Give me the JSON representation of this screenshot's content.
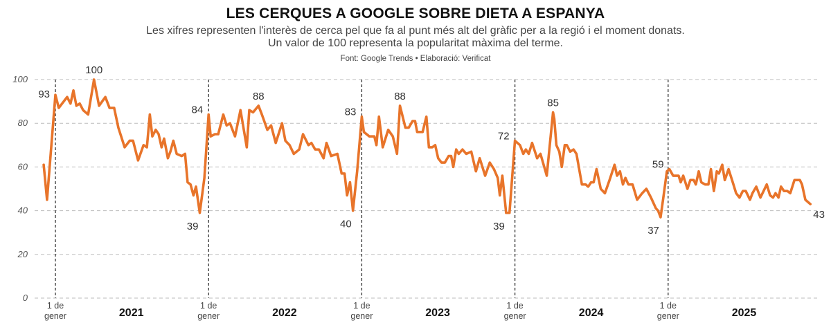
{
  "header": {
    "title": "LES CERQUES A GOOGLE SOBRE DIETA A ESPANYA",
    "subtitle_line1": "Les xifres representen l'interès de cerca pel que fa al punt més alt del gràfic per a la regió i el moment donats.",
    "subtitle_line2": "Un valor de 100 representa la popularitat màxima del terme.",
    "source": "Font: Google Trends • Elaboració: Verificat"
  },
  "chart_data": {
    "type": "line",
    "title": "LES CERQUES A GOOGLE SOBRE DIETA A ESPANYA",
    "xlabel": "",
    "ylabel": "",
    "ylim": [
      0,
      100
    ],
    "yticks": [
      "0",
      "20",
      "40",
      "60",
      "80",
      "100"
    ],
    "grid": "horizontal dashed",
    "line_color": "#E8742A",
    "year_markers": [
      {
        "date": "2021-01-01",
        "label": "1 de gener"
      },
      {
        "date": "2022-01-01",
        "label": "1 de gener"
      },
      {
        "date": "2023-01-01",
        "label": "1 de gener"
      },
      {
        "date": "2024-01-01",
        "label": "1 de gener"
      },
      {
        "date": "2025-01-01",
        "label": "1 de gener"
      }
    ],
    "year_labels": [
      {
        "label": "2021",
        "date": "2021-07-01"
      },
      {
        "label": "2022",
        "date": "2022-07-01"
      },
      {
        "label": "2023",
        "date": "2023-07-01"
      },
      {
        "label": "2024",
        "date": "2024-07-01"
      },
      {
        "label": "2025",
        "date": "2025-07-01"
      }
    ],
    "series": [
      {
        "points": [
          [
            "2020-12-04",
            61
          ],
          [
            "2020-12-12",
            45
          ],
          [
            "2021-01-01",
            93
          ],
          [
            "2021-01-09",
            87
          ],
          [
            "2021-01-29",
            92
          ],
          [
            "2021-02-06",
            89
          ],
          [
            "2021-02-13",
            95
          ],
          [
            "2021-02-20",
            88
          ],
          [
            "2021-02-28",
            89
          ],
          [
            "2021-03-08",
            86
          ],
          [
            "2021-03-20",
            84
          ],
          [
            "2021-04-03",
            100
          ],
          [
            "2021-04-15",
            88
          ],
          [
            "2021-04-30",
            92
          ],
          [
            "2021-05-10",
            87
          ],
          [
            "2021-05-21",
            87
          ],
          [
            "2021-05-31",
            78
          ],
          [
            "2021-06-15",
            69
          ],
          [
            "2021-06-27",
            72
          ],
          [
            "2021-07-05",
            72
          ],
          [
            "2021-07-17",
            63
          ],
          [
            "2021-07-30",
            70
          ],
          [
            "2021-08-07",
            69
          ],
          [
            "2021-08-14",
            84
          ],
          [
            "2021-08-20",
            74
          ],
          [
            "2021-08-28",
            77
          ],
          [
            "2021-09-04",
            75
          ],
          [
            "2021-09-11",
            69
          ],
          [
            "2021-09-17",
            73
          ],
          [
            "2021-09-26",
            64
          ],
          [
            "2021-10-02",
            67
          ],
          [
            "2021-10-09",
            72
          ],
          [
            "2021-10-17",
            66
          ],
          [
            "2021-10-29",
            65
          ],
          [
            "2021-11-06",
            66
          ],
          [
            "2021-11-12",
            53
          ],
          [
            "2021-11-19",
            52
          ],
          [
            "2021-11-26",
            47
          ],
          [
            "2021-12-02",
            51
          ],
          [
            "2021-12-11",
            39
          ],
          [
            "2021-12-22",
            55
          ],
          [
            "2022-01-01",
            84
          ],
          [
            "2022-01-06",
            74
          ],
          [
            "2022-01-16",
            75
          ],
          [
            "2022-01-24",
            75
          ],
          [
            "2022-02-05",
            84
          ],
          [
            "2022-02-13",
            79
          ],
          [
            "2022-02-21",
            80
          ],
          [
            "2022-03-05",
            74
          ],
          [
            "2022-03-18",
            86
          ],
          [
            "2022-04-02",
            69
          ],
          [
            "2022-04-08",
            86
          ],
          [
            "2022-04-17",
            85
          ],
          [
            "2022-04-30",
            88
          ],
          [
            "2022-05-08",
            84
          ],
          [
            "2022-05-21",
            77
          ],
          [
            "2022-05-30",
            79
          ],
          [
            "2022-06-10",
            71
          ],
          [
            "2022-06-25",
            80
          ],
          [
            "2022-07-03",
            72
          ],
          [
            "2022-07-13",
            70
          ],
          [
            "2022-07-23",
            66
          ],
          [
            "2022-08-05",
            68
          ],
          [
            "2022-08-14",
            75
          ],
          [
            "2022-08-27",
            70
          ],
          [
            "2022-09-03",
            71
          ],
          [
            "2022-09-12",
            68
          ],
          [
            "2022-09-21",
            68
          ],
          [
            "2022-10-02",
            64
          ],
          [
            "2022-10-09",
            71
          ],
          [
            "2022-10-20",
            65
          ],
          [
            "2022-11-04",
            66
          ],
          [
            "2022-11-14",
            57
          ],
          [
            "2022-11-21",
            57
          ],
          [
            "2022-11-27",
            47
          ],
          [
            "2022-12-04",
            53
          ],
          [
            "2022-12-11",
            40
          ],
          [
            "2022-12-21",
            58
          ],
          [
            "2023-01-01",
            83
          ],
          [
            "2023-01-06",
            76
          ],
          [
            "2023-01-19",
            74
          ],
          [
            "2023-01-31",
            74
          ],
          [
            "2023-02-05",
            70
          ],
          [
            "2023-02-11",
            83
          ],
          [
            "2023-02-20",
            69
          ],
          [
            "2023-03-05",
            77
          ],
          [
            "2023-03-16",
            74
          ],
          [
            "2023-03-26",
            66
          ],
          [
            "2023-04-02",
            88
          ],
          [
            "2023-04-15",
            78
          ],
          [
            "2023-04-23",
            78
          ],
          [
            "2023-05-02",
            81
          ],
          [
            "2023-05-08",
            81
          ],
          [
            "2023-05-13",
            76
          ],
          [
            "2023-05-26",
            76
          ],
          [
            "2023-06-04",
            83
          ],
          [
            "2023-06-10",
            69
          ],
          [
            "2023-06-18",
            69
          ],
          [
            "2023-06-25",
            70
          ],
          [
            "2023-07-02",
            64
          ],
          [
            "2023-07-10",
            62
          ],
          [
            "2023-07-18",
            62
          ],
          [
            "2023-07-27",
            65
          ],
          [
            "2023-08-02",
            65
          ],
          [
            "2023-08-07",
            60
          ],
          [
            "2023-08-14",
            68
          ],
          [
            "2023-08-20",
            66
          ],
          [
            "2023-08-29",
            68
          ],
          [
            "2023-09-07",
            66
          ],
          [
            "2023-09-19",
            67
          ],
          [
            "2023-09-30",
            58
          ],
          [
            "2023-10-09",
            64
          ],
          [
            "2023-10-22",
            56
          ],
          [
            "2023-11-02",
            62
          ],
          [
            "2023-11-12",
            59
          ],
          [
            "2023-11-21",
            55
          ],
          [
            "2023-11-26",
            47
          ],
          [
            "2023-12-02",
            56
          ],
          [
            "2023-12-11",
            39
          ],
          [
            "2023-12-19",
            39
          ],
          [
            "2024-01-01",
            72
          ],
          [
            "2024-01-13",
            70
          ],
          [
            "2024-01-21",
            66
          ],
          [
            "2024-01-27",
            68
          ],
          [
            "2024-02-03",
            66
          ],
          [
            "2024-02-11",
            71
          ],
          [
            "2024-02-23",
            64
          ],
          [
            "2024-03-02",
            66
          ],
          [
            "2024-03-17",
            56
          ],
          [
            "2024-04-01",
            85
          ],
          [
            "2024-04-04",
            82
          ],
          [
            "2024-04-09",
            70
          ],
          [
            "2024-04-16",
            67
          ],
          [
            "2024-04-22",
            60
          ],
          [
            "2024-04-29",
            70
          ],
          [
            "2024-05-04",
            70
          ],
          [
            "2024-05-12",
            67
          ],
          [
            "2024-05-20",
            68
          ],
          [
            "2024-05-27",
            66
          ],
          [
            "2024-06-09",
            52
          ],
          [
            "2024-06-18",
            52
          ],
          [
            "2024-06-24",
            51
          ],
          [
            "2024-07-01",
            53
          ],
          [
            "2024-07-07",
            53
          ],
          [
            "2024-07-14",
            59
          ],
          [
            "2024-07-24",
            50
          ],
          [
            "2024-08-03",
            48
          ],
          [
            "2024-08-14",
            54
          ],
          [
            "2024-08-26",
            61
          ],
          [
            "2024-09-01",
            56
          ],
          [
            "2024-09-08",
            58
          ],
          [
            "2024-09-15",
            52
          ],
          [
            "2024-09-21",
            55
          ],
          [
            "2024-09-28",
            52
          ],
          [
            "2024-10-08",
            52
          ],
          [
            "2024-10-19",
            45
          ],
          [
            "2024-10-31",
            48
          ],
          [
            "2024-11-10",
            50
          ],
          [
            "2024-11-21",
            46
          ],
          [
            "2024-12-03",
            41
          ],
          [
            "2024-12-08",
            40
          ],
          [
            "2024-12-14",
            37
          ],
          [
            "2024-12-22",
            48
          ],
          [
            "2024-12-29",
            58
          ],
          [
            "2025-01-04",
            59
          ],
          [
            "2025-01-13",
            56
          ],
          [
            "2025-01-26",
            56
          ],
          [
            "2025-01-31",
            53
          ],
          [
            "2025-02-06",
            56
          ],
          [
            "2025-02-16",
            50
          ],
          [
            "2025-02-23",
            54
          ],
          [
            "2025-03-03",
            54
          ],
          [
            "2025-03-08",
            52
          ],
          [
            "2025-03-15",
            58
          ],
          [
            "2025-03-21",
            53
          ],
          [
            "2025-03-30",
            52
          ],
          [
            "2025-04-07",
            52
          ],
          [
            "2025-04-13",
            59
          ],
          [
            "2025-04-20",
            49
          ],
          [
            "2025-04-27",
            58
          ],
          [
            "2025-05-02",
            57
          ],
          [
            "2025-05-10",
            61
          ],
          [
            "2025-05-16",
            54
          ],
          [
            "2025-05-25",
            59
          ],
          [
            "2025-06-04",
            53
          ],
          [
            "2025-06-12",
            48
          ],
          [
            "2025-06-20",
            46
          ],
          [
            "2025-06-28",
            49
          ],
          [
            "2025-07-05",
            49
          ],
          [
            "2025-07-15",
            45
          ],
          [
            "2025-07-21",
            48
          ],
          [
            "2025-07-30",
            51
          ],
          [
            "2025-08-09",
            46
          ],
          [
            "2025-08-24",
            52
          ],
          [
            "2025-09-01",
            47
          ],
          [
            "2025-09-08",
            46
          ],
          [
            "2025-09-14",
            48
          ],
          [
            "2025-09-21",
            46
          ],
          [
            "2025-09-27",
            51
          ],
          [
            "2025-10-04",
            49
          ],
          [
            "2025-10-12",
            49
          ],
          [
            "2025-10-19",
            48
          ],
          [
            "2025-10-29",
            54
          ],
          [
            "2025-11-11",
            54
          ],
          [
            "2025-11-16",
            52
          ],
          [
            "2025-11-24",
            45
          ],
          [
            "2025-12-06",
            43
          ]
        ]
      }
    ],
    "annotations": [
      {
        "text": "93",
        "date": "2021-01-01",
        "value": 93,
        "pos": "left"
      },
      {
        "text": "100",
        "date": "2021-04-03",
        "value": 100,
        "pos": "above"
      },
      {
        "text": "39",
        "date": "2021-12-11",
        "value": 39,
        "pos": "below-left"
      },
      {
        "text": "84",
        "date": "2022-01-01",
        "value": 84,
        "pos": "left"
      },
      {
        "text": "88",
        "date": "2022-04-30",
        "value": 88,
        "pos": "above"
      },
      {
        "text": "40",
        "date": "2022-12-11",
        "value": 40,
        "pos": "below-left"
      },
      {
        "text": "83",
        "date": "2023-01-01",
        "value": 83,
        "pos": "left"
      },
      {
        "text": "88",
        "date": "2023-04-02",
        "value": 88,
        "pos": "above"
      },
      {
        "text": "39",
        "date": "2023-12-11",
        "value": 39,
        "pos": "below-left"
      },
      {
        "text": "72",
        "date": "2024-01-01",
        "value": 72,
        "pos": "left"
      },
      {
        "text": "85",
        "date": "2024-04-01",
        "value": 85,
        "pos": "above"
      },
      {
        "text": "37",
        "date": "2024-12-14",
        "value": 37,
        "pos": "below-left"
      },
      {
        "text": "59",
        "date": "2025-01-04",
        "value": 59,
        "pos": "left"
      },
      {
        "text": "43",
        "date": "2025-12-06",
        "value": 43,
        "pos": "below-right"
      }
    ]
  }
}
